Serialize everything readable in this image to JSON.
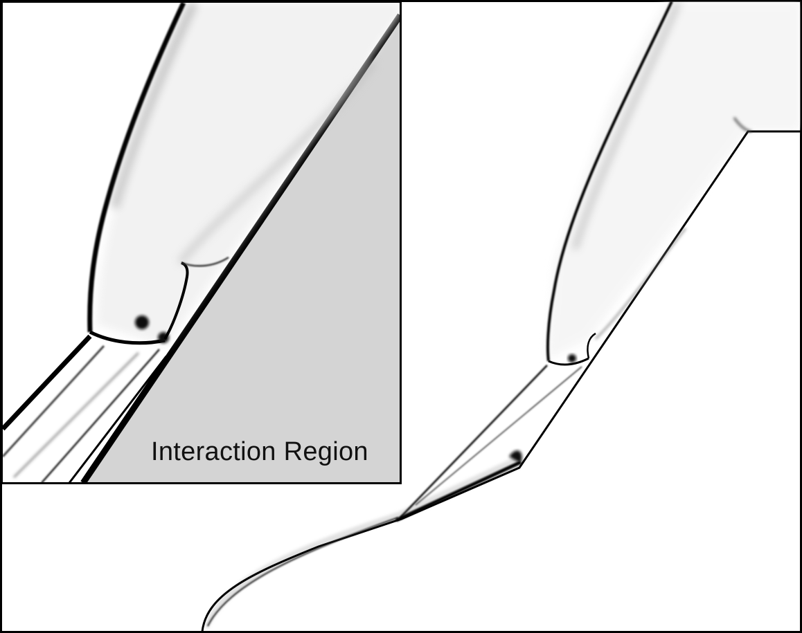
{
  "inset": {
    "label": "Interaction Region"
  },
  "colors": {
    "background": "#ffffff",
    "inset_body": "#d4d4d4",
    "shock_lines": "#000000",
    "frame": "#000000"
  }
}
